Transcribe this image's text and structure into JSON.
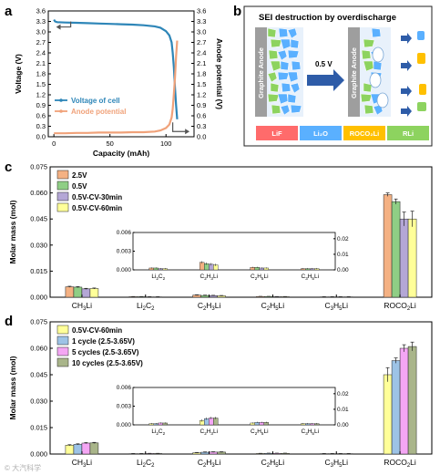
{
  "panels": {
    "a": {
      "letter": "a"
    },
    "b": {
      "letter": "b"
    },
    "c": {
      "letter": "c"
    },
    "d": {
      "letter": "d"
    }
  },
  "schematic": {
    "title": "SEI destruction  by overdischarge",
    "anode_label": "Graphite Anode",
    "arrow_label": "0.5 V",
    "legend": [
      {
        "label": "LiF",
        "color": "#ff6b6b"
      },
      {
        "label": "Li₂O",
        "color": "#5ab0ff"
      },
      {
        "label": "ROCO₂Li",
        "color": "#ffc000"
      },
      {
        "label": "RLi",
        "color": "#8dd35f"
      }
    ]
  },
  "chart_data": [
    {
      "id": "a",
      "type": "line",
      "xlabel": "Capacity (mAh)",
      "ylabel": "Voltage (V)",
      "y2label": "Anode potential (V)",
      "xlim": [
        -5,
        125
      ],
      "xticks": [
        0,
        50,
        100
      ],
      "xtick_labels": [
        "0",
        "50",
        "100"
      ],
      "ylim": [
        0,
        3.6
      ],
      "yticks": [
        0.0,
        0.3,
        0.6,
        0.9,
        1.2,
        1.5,
        1.8,
        2.1,
        2.4,
        2.7,
        3.0,
        3.3,
        3.6
      ],
      "ytick_labels": [
        "0.0",
        "0.3",
        "0.6",
        "0.9",
        "1.2",
        "1.5",
        "1.8",
        "2.1",
        "2.4",
        "2.7",
        "3.0",
        "3.3",
        "3.6"
      ],
      "y2lim": [
        0,
        3.6
      ],
      "y2ticks": [
        0.0,
        0.3,
        0.6,
        0.9,
        1.2,
        1.5,
        1.8,
        2.1,
        2.4,
        2.7,
        3.0,
        3.3,
        3.6
      ],
      "y2tick_labels": [
        "0.0",
        "0.3",
        "0.6",
        "0.9",
        "1.2",
        "1.5",
        "1.8",
        "2.1",
        "2.4",
        "2.7",
        "3.0",
        "3.3",
        "3.6"
      ],
      "legend_placement": "center-left",
      "series": [
        {
          "name": "Voltage of cell",
          "color": "#2e86b8",
          "axis": "left",
          "x": [
            0,
            1,
            3,
            10,
            20,
            30,
            40,
            50,
            60,
            70,
            80,
            90,
            95,
            100,
            103,
            105,
            106,
            107,
            108,
            109,
            110
          ],
          "y": [
            3.35,
            3.3,
            3.28,
            3.27,
            3.26,
            3.25,
            3.24,
            3.23,
            3.22,
            3.21,
            3.19,
            3.16,
            3.12,
            3.02,
            2.9,
            2.7,
            2.4,
            2.0,
            1.4,
            0.9,
            0.5
          ]
        },
        {
          "name": "Anode potential",
          "color": "#f0a27a",
          "axis": "right",
          "x": [
            0,
            5,
            10,
            20,
            30,
            40,
            50,
            60,
            70,
            80,
            90,
            95,
            100,
            103,
            105,
            106,
            107,
            108,
            109,
            110
          ],
          "y": [
            0.1,
            0.1,
            0.1,
            0.11,
            0.11,
            0.12,
            0.12,
            0.12,
            0.13,
            0.13,
            0.15,
            0.18,
            0.25,
            0.35,
            0.55,
            0.8,
            1.2,
            1.7,
            2.3,
            2.75
          ]
        }
      ]
    },
    {
      "id": "c",
      "type": "bar",
      "ylabel": "Molar mass (mol)",
      "ylim": [
        0,
        0.075
      ],
      "yticks": [
        0,
        0.015,
        0.03,
        0.045,
        0.06,
        0.075
      ],
      "ytick_labels": [
        "0.000",
        "0.015",
        "0.030",
        "0.045",
        "0.060",
        "0.075"
      ],
      "categories": [
        "CH3Li",
        "Li2C2",
        "C2H3Li",
        "C2H5Li",
        "C3H5Li",
        "ROCO2Li"
      ],
      "category_labels": [
        {
          "pre": "CH",
          "sub": "3",
          "post": "Li"
        },
        {
          "pre": "Li",
          "sub": "2",
          "post": "C",
          "sub2": "2"
        },
        {
          "pre": "C",
          "sub": "2",
          "post": "H",
          "sub2": "3",
          "post2": "Li"
        },
        {
          "pre": "C",
          "sub": "2",
          "post": "H",
          "sub2": "5",
          "post2": "Li"
        },
        {
          "pre": "C",
          "sub": "3",
          "post": "H",
          "sub2": "5",
          "post2": "Li"
        },
        {
          "pre": "ROCO",
          "sub": "2",
          "post": "Li"
        }
      ],
      "legend_placement": "top-left",
      "series": [
        {
          "name": "2.5V",
          "color": "#f4b183",
          "values": [
            0.006,
            0.0003,
            0.0012,
            0.0004,
            0.0002,
            0.059
          ],
          "errors": [
            0.0003,
            0.0001,
            0.0002,
            0.0001,
            0.0001,
            0.001
          ]
        },
        {
          "name": "0.5V",
          "color": "#8fce85",
          "values": [
            0.0058,
            0.0003,
            0.001,
            0.0004,
            0.0002,
            0.055
          ],
          "errors": [
            0.0003,
            0.0001,
            0.0002,
            0.0001,
            0.0001,
            0.0015
          ]
        },
        {
          "name": "0.5V-CV-30min",
          "color": "#b4a7d6",
          "values": [
            0.0048,
            0.0002,
            0.0009,
            0.0003,
            0.0002,
            0.045
          ],
          "errors": [
            0.0003,
            0.0001,
            0.0002,
            0.0001,
            0.0001,
            0.004
          ]
        },
        {
          "name": "0.5V-CV-60min",
          "color": "#ffff99",
          "values": [
            0.005,
            0.0002,
            0.0008,
            0.0003,
            0.0002,
            0.045
          ],
          "errors": [
            0.0003,
            0.0001,
            0.0002,
            0.0001,
            0.0001,
            0.0045
          ]
        }
      ],
      "inset": {
        "categories_idx": [
          1,
          2,
          3,
          4
        ],
        "ylim": [
          0,
          0.006
        ],
        "yticks": [
          0,
          0.003,
          0.006
        ],
        "ytick_labels": [
          "0.000",
          "0.003",
          "0.006"
        ],
        "y2lim": [
          0,
          0.024
        ],
        "y2ticks": [
          0,
          0.01,
          0.02
        ],
        "y2tick_labels": [
          "0.00",
          "0.01",
          "0.02"
        ]
      }
    },
    {
      "id": "d",
      "type": "bar",
      "ylabel": "Molar mass (mol)",
      "ylim": [
        0,
        0.075
      ],
      "yticks": [
        0,
        0.015,
        0.03,
        0.045,
        0.06,
        0.075
      ],
      "ytick_labels": [
        "0.000",
        "0.015",
        "0.030",
        "0.045",
        "0.060",
        "0.075"
      ],
      "categories": [
        "CH3Li",
        "Li2C2",
        "C2H3Li",
        "C2H5Li",
        "C3H5Li",
        "ROCO2Li"
      ],
      "category_labels": [
        {
          "pre": "CH",
          "sub": "3",
          "post": "Li"
        },
        {
          "pre": "Li",
          "sub": "2",
          "post": "C",
          "sub2": "2"
        },
        {
          "pre": "C",
          "sub": "2",
          "post": "H",
          "sub2": "3",
          "post2": "Li"
        },
        {
          "pre": "C",
          "sub": "2",
          "post": "H",
          "sub2": "5",
          "post2": "Li"
        },
        {
          "pre": "C",
          "sub": "3",
          "post": "H",
          "sub2": "5",
          "post2": "Li"
        },
        {
          "pre": "ROCO",
          "sub": "2",
          "post": "Li"
        }
      ],
      "legend_placement": "top-left",
      "series": [
        {
          "name": "0.5V-CV-60min",
          "color": "#ffff99",
          "values": [
            0.005,
            0.0002,
            0.0007,
            0.0003,
            0.0002,
            0.045
          ],
          "errors": [
            0.0003,
            0.0001,
            0.0002,
            0.0001,
            0.0001,
            0.004
          ]
        },
        {
          "name": "1 cycle (2.5-3.65V)",
          "color": "#9dc3e6",
          "values": [
            0.0055,
            0.0002,
            0.001,
            0.0004,
            0.0002,
            0.053
          ],
          "errors": [
            0.0003,
            0.0001,
            0.0002,
            0.0001,
            0.0001,
            0.0015
          ]
        },
        {
          "name": "5 cycles (2.5-3.65V)",
          "color": "#f4a6f4",
          "values": [
            0.0062,
            0.0003,
            0.0011,
            0.0004,
            0.0002,
            0.06
          ],
          "errors": [
            0.0003,
            0.0001,
            0.0002,
            0.0001,
            0.0001,
            0.002
          ]
        },
        {
          "name": "10 cycles (2.5-3.65V)",
          "color": "#a9b58a",
          "values": [
            0.0063,
            0.0003,
            0.0011,
            0.0004,
            0.0002,
            0.061
          ],
          "errors": [
            0.0003,
            0.0001,
            0.0002,
            0.0001,
            0.0001,
            0.0025
          ]
        }
      ],
      "inset": {
        "categories_idx": [
          1,
          2,
          3,
          4
        ],
        "ylim": [
          0,
          0.006
        ],
        "yticks": [
          0,
          0.003,
          0.006
        ],
        "ytick_labels": [
          "0.000",
          "0.003",
          "0.006"
        ],
        "y2lim": [
          0,
          0.024
        ],
        "y2ticks": [
          0,
          0.01,
          0.02
        ],
        "y2tick_labels": [
          "0.00",
          "0.01",
          "0.02"
        ]
      }
    }
  ],
  "watermark": "© 大汽科学"
}
